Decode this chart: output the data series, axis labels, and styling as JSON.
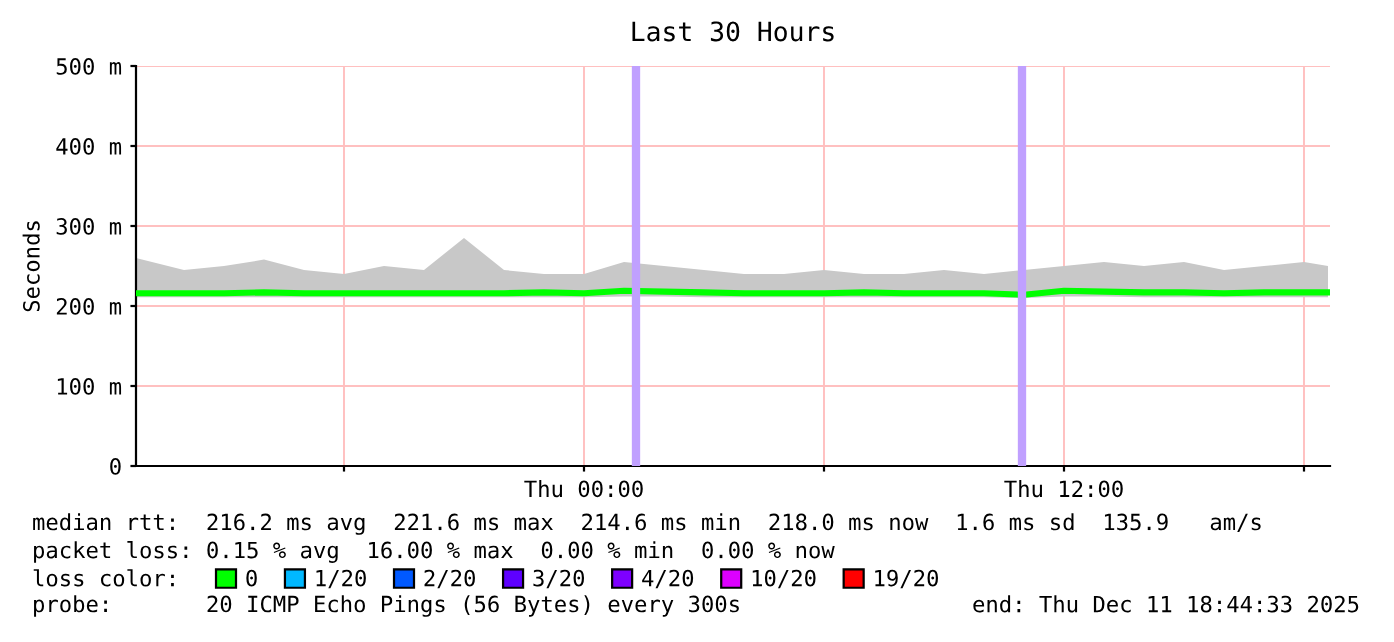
{
  "chart_data": {
    "type": "line",
    "title": "Last 30 Hours",
    "ylabel": "Seconds",
    "x": [
      "2025-12-10T12:48",
      "2025-12-10T14:00",
      "2025-12-10T15:00",
      "2025-12-10T16:00",
      "2025-12-10T17:00",
      "2025-12-10T18:00",
      "2025-12-10T19:00",
      "2025-12-10T20:00",
      "2025-12-10T21:00",
      "2025-12-10T22:00",
      "2025-12-10T23:00",
      "2025-12-11T00:00",
      "2025-12-11T01:00",
      "2025-12-11T02:00",
      "2025-12-11T03:00",
      "2025-12-11T04:00",
      "2025-12-11T05:00",
      "2025-12-11T06:00",
      "2025-12-11T07:00",
      "2025-12-11T08:00",
      "2025-12-11T09:00",
      "2025-12-11T10:00",
      "2025-12-11T11:00",
      "2025-12-11T12:00",
      "2025-12-11T13:00",
      "2025-12-11T14:00",
      "2025-12-11T15:00",
      "2025-12-11T16:00",
      "2025-12-11T17:00",
      "2025-12-11T18:00",
      "2025-12-11T18:36"
    ],
    "series": [
      {
        "name": "0",
        "color": "#00ff00",
        "values": [
          216,
          216,
          216,
          217,
          216,
          216,
          216,
          216,
          216,
          216,
          217,
          216,
          219,
          218,
          217,
          216,
          216,
          216,
          217,
          216,
          216,
          216,
          214,
          219,
          218,
          217,
          217,
          216,
          217,
          217,
          217
        ],
        "lower": [
          211,
          211,
          211,
          211,
          211,
          211,
          211,
          211,
          211,
          211,
          211,
          211,
          212,
          212,
          211,
          211,
          211,
          211,
          211,
          211,
          211,
          211,
          210,
          212,
          212,
          211,
          211,
          211,
          211,
          211,
          211
        ],
        "upper": [
          260,
          245,
          250,
          258,
          245,
          240,
          250,
          245,
          285,
          245,
          240,
          240,
          255,
          250,
          245,
          240,
          240,
          245,
          240,
          240,
          245,
          240,
          245,
          250,
          255,
          250,
          255,
          245,
          250,
          255,
          250
        ]
      },
      {
        "name": "1/20",
        "color": "#00b8ff",
        "values": [
          null,
          null,
          null,
          null,
          null,
          null,
          null,
          null,
          null,
          null,
          null,
          null,
          null,
          null,
          null,
          null,
          null,
          null,
          null,
          null,
          null,
          null,
          null,
          null,
          null,
          null,
          null,
          null,
          null,
          null,
          null
        ]
      },
      {
        "name": "2/20",
        "color": "#0059ff",
        "values": [
          null,
          null,
          null,
          null,
          null,
          null,
          null,
          null,
          null,
          null,
          null,
          null,
          null,
          null,
          null,
          null,
          null,
          null,
          null,
          null,
          null,
          null,
          null,
          null,
          null,
          null,
          null,
          null,
          null,
          null,
          null
        ]
      },
      {
        "name": "3/20",
        "color": "#5e00ff",
        "values": [
          null,
          null,
          null,
          null,
          null,
          null,
          null,
          null,
          null,
          null,
          null,
          null,
          null,
          null,
          null,
          null,
          null,
          null,
          null,
          null,
          null,
          null,
          null,
          null,
          null,
          null,
          null,
          null,
          null,
          null,
          null
        ]
      },
      {
        "name": "4/20",
        "color": "#7e00ff",
        "values": [
          null,
          null,
          null,
          null,
          null,
          null,
          null,
          null,
          null,
          null,
          null,
          null,
          null,
          null,
          null,
          null,
          null,
          null,
          null,
          null,
          null,
          null,
          null,
          null,
          null,
          null,
          null,
          null,
          null,
          null,
          null
        ]
      },
      {
        "name": "10/20",
        "color": "#dd00ff",
        "values": [
          null,
          null,
          null,
          null,
          null,
          null,
          null,
          null,
          null,
          null,
          null,
          null,
          null,
          null,
          null,
          null,
          null,
          null,
          null,
          null,
          null,
          null,
          null,
          null,
          null,
          null,
          null,
          null,
          null,
          null,
          null
        ]
      },
      {
        "name": "19/20",
        "color": "#ff0000",
        "values": [
          null,
          null,
          null,
          null,
          null,
          null,
          null,
          null,
          null,
          null,
          null,
          null,
          null,
          null,
          null,
          null,
          null,
          null,
          null,
          null,
          null,
          null,
          null,
          null,
          null,
          null,
          null,
          null,
          null,
          null,
          null
        ]
      }
    ],
    "legend_title": "loss color:",
    "legend": "bottom",
    "xlim": [
      "2025-12-10T12:48",
      "2025-12-11T18:39"
    ],
    "xticks": [
      {
        "value": "2025-12-10T18:00",
        "label": null
      },
      {
        "value": "2025-12-11T00:00",
        "label": "Thu 00:00"
      },
      {
        "value": "2025-12-11T06:00",
        "label": null
      },
      {
        "value": "2025-12-11T12:00",
        "label": "Thu 12:00"
      },
      {
        "value": "2025-12-11T18:00",
        "label": null
      }
    ],
    "ylim": [
      0,
      500
    ],
    "yticks": [
      0,
      {
        "value": 100,
        "label": "100 m"
      },
      {
        "value": 200,
        "label": "200 m"
      },
      {
        "value": 300,
        "label": "300 m"
      },
      {
        "value": 400,
        "label": "400 m"
      },
      {
        "value": 500,
        "label": "500 m"
      }
    ],
    "grid": true,
    "ref_lines": [
      {
        "axis": "x",
        "value": "2025-12-11T01:18",
        "color": "#c0a0ff"
      },
      {
        "axis": "x",
        "value": "2025-12-11T10:57",
        "color": "#c0a0ff"
      }
    ],
    "annotations": [
      "median rtt:  216.2 ms avg  221.6 ms max  214.6 ms min  218.0 ms now  1.6 ms sd  135.9   am/s",
      "packet loss: 0.15 % avg  16.00 % max  0.00 % min  0.00 % now",
      "probe:       20 ICMP Echo Pings (56 Bytes) every 300s",
      "end: Thu Dec 11 18:44:33 2025"
    ]
  }
}
